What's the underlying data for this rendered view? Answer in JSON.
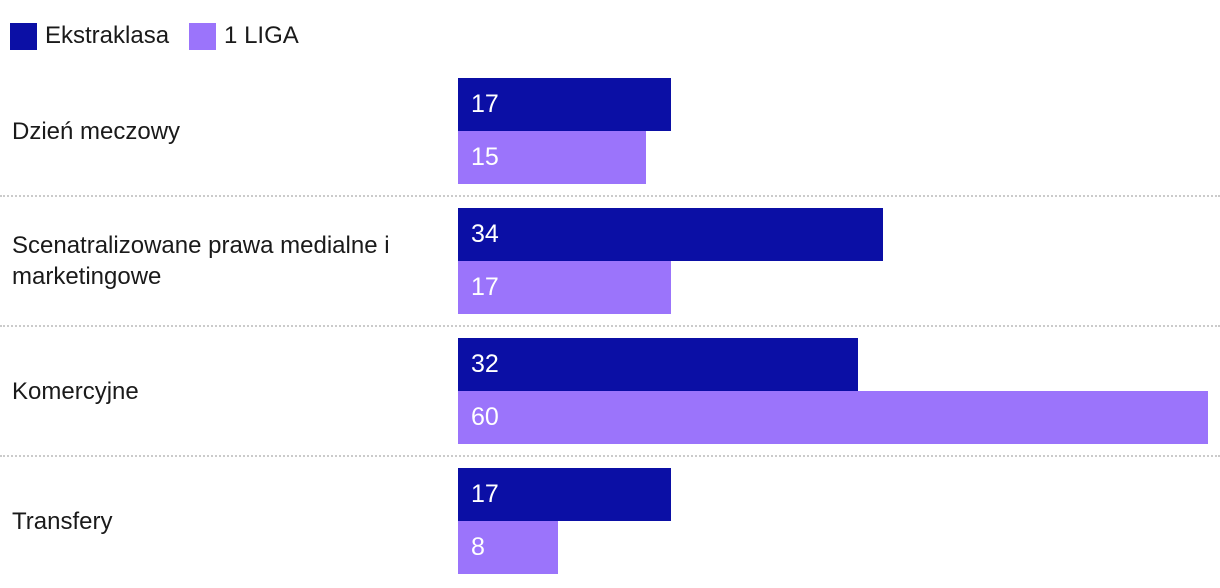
{
  "legend": {
    "items": [
      {
        "label": "Ekstraklasa",
        "color": "#0b0fa5"
      },
      {
        "label": "1 LIGA",
        "color": "#9b74fb"
      }
    ]
  },
  "chart_data": {
    "type": "bar",
    "orientation": "horizontal",
    "title": "",
    "categories": [
      "Dzień meczowy",
      "Scenatralizowane prawa medialne i marketingowe",
      "Komercyjne",
      "Transfery"
    ],
    "series": [
      {
        "name": "Ekstraklasa",
        "color": "#0b0fa5",
        "values": [
          17,
          34,
          32,
          17
        ]
      },
      {
        "name": "1 LIGA",
        "color": "#9b74fb",
        "values": [
          15,
          17,
          60,
          8
        ]
      }
    ],
    "xlim": [
      0,
      61
    ],
    "grid": false,
    "legend_position": "top-left",
    "value_labels": "inside-start-white",
    "row_separator": "dotted"
  },
  "colors": {
    "background": "#ffffff",
    "text": "#1a1a1a",
    "value_text": "#ffffff",
    "separator": "#cbcbcb"
  }
}
